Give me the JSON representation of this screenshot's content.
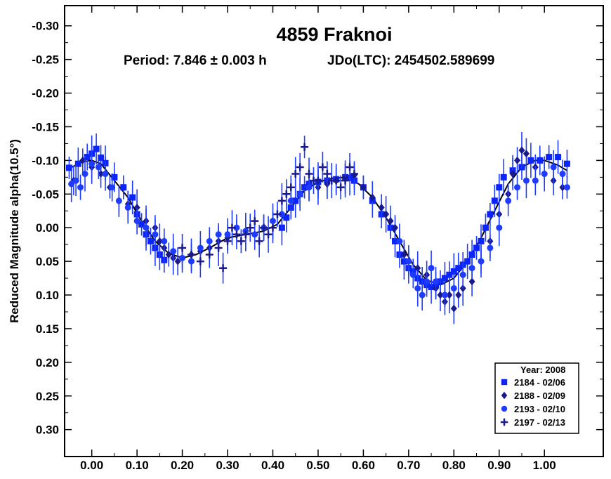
{
  "chart_data": {
    "type": "scatter",
    "title": "4859 Fraknoi",
    "subtitle_period": "Period: 7.846 ± 0.003 h",
    "subtitle_epoch": "JDo(LTC): 2454502.589699",
    "ylabel": "Reduced Magnitude alpha(10.5°)",
    "xlabel": "",
    "xlim": [
      -0.06,
      1.13
    ],
    "ylim": [
      -0.33,
      0.34
    ],
    "y_inverted": true,
    "grid": false,
    "legend_position": "bottom-right",
    "x_ticks": [
      "0.00",
      "0.10",
      "0.20",
      "0.30",
      "0.40",
      "0.50",
      "0.60",
      "0.70",
      "0.80",
      "0.90",
      "1.00"
    ],
    "y_ticks": [
      "-0.30",
      "-0.25",
      "-0.20",
      "-0.15",
      "-0.10",
      "-0.05",
      "0.00",
      "0.05",
      "0.10",
      "0.15",
      "0.20",
      "0.25",
      "0.30"
    ],
    "legend_title": "Year: 2008",
    "series": [
      {
        "name": "2184 - 02/06",
        "marker": "square",
        "color": "#0b24fb",
        "points": [
          [
            -0.05,
            -0.089
          ],
          [
            -0.03,
            -0.095
          ],
          [
            -0.01,
            -0.105
          ],
          [
            0.0,
            -0.11
          ],
          [
            0.01,
            -0.117
          ],
          [
            0.02,
            -0.104
          ],
          [
            0.03,
            -0.096
          ],
          [
            0.05,
            -0.075
          ],
          [
            0.07,
            -0.06
          ],
          [
            0.09,
            -0.045
          ],
          [
            0.1,
            -0.02
          ],
          [
            0.11,
            -0.005
          ],
          [
            0.12,
            0.01
          ],
          [
            0.13,
            0.02
          ],
          [
            0.14,
            0.03
          ],
          [
            0.15,
            0.04
          ],
          [
            0.16,
            0.048
          ],
          [
            0.42,
            0.0
          ],
          [
            0.43,
            -0.015
          ],
          [
            0.44,
            -0.03
          ],
          [
            0.45,
            -0.04
          ],
          [
            0.46,
            -0.05
          ],
          [
            0.47,
            -0.06
          ],
          [
            0.48,
            -0.065
          ],
          [
            0.5,
            -0.068
          ],
          [
            0.52,
            -0.07
          ],
          [
            0.54,
            -0.072
          ],
          [
            0.56,
            -0.075
          ],
          [
            0.57,
            -0.074
          ],
          [
            0.58,
            -0.07
          ],
          [
            0.6,
            -0.06
          ],
          [
            0.62,
            -0.04
          ],
          [
            0.64,
            -0.02
          ],
          [
            0.66,
            0.0
          ],
          [
            0.67,
            0.02
          ],
          [
            0.68,
            0.04
          ],
          [
            0.69,
            0.05
          ],
          [
            0.7,
            0.06
          ],
          [
            0.71,
            0.065
          ],
          [
            0.72,
            0.075
          ],
          [
            0.73,
            0.08
          ],
          [
            0.74,
            0.085
          ],
          [
            0.75,
            0.088
          ],
          [
            0.76,
            0.085
          ],
          [
            0.77,
            0.08
          ],
          [
            0.78,
            0.075
          ],
          [
            0.79,
            0.07
          ],
          [
            0.8,
            0.065
          ],
          [
            0.81,
            0.06
          ],
          [
            0.82,
            0.055
          ],
          [
            0.83,
            0.05
          ],
          [
            0.84,
            0.04
          ],
          [
            0.85,
            0.03
          ],
          [
            0.86,
            0.02
          ],
          [
            0.87,
            0.0
          ],
          [
            0.88,
            -0.02
          ],
          [
            0.89,
            -0.04
          ],
          [
            0.9,
            -0.06
          ],
          [
            0.91,
            -0.075
          ],
          [
            0.93,
            -0.085
          ],
          [
            0.95,
            -0.09
          ],
          [
            0.97,
            -0.1
          ],
          [
            0.99,
            -0.1
          ],
          [
            1.01,
            -0.105
          ],
          [
            1.03,
            -0.105
          ],
          [
            1.05,
            -0.095
          ]
        ]
      },
      {
        "name": "2188 - 02/09",
        "marker": "diamond",
        "color": "#1a1a8c",
        "points": [
          [
            -0.04,
            -0.07
          ],
          [
            -0.02,
            -0.1
          ],
          [
            0.0,
            -0.09
          ],
          [
            0.02,
            -0.08
          ],
          [
            0.04,
            -0.06
          ],
          [
            0.06,
            -0.04
          ],
          [
            0.08,
            -0.035
          ],
          [
            0.1,
            -0.03
          ],
          [
            0.12,
            -0.01
          ],
          [
            0.14,
            0.0
          ],
          [
            0.15,
            0.02
          ],
          [
            0.16,
            0.03
          ],
          [
            0.17,
            0.04
          ],
          [
            0.18,
            0.045
          ],
          [
            0.19,
            0.05
          ],
          [
            0.2,
            0.045
          ],
          [
            0.22,
            0.04
          ],
          [
            0.24,
            0.035
          ],
          [
            0.26,
            0.03
          ],
          [
            0.28,
            0.02
          ],
          [
            0.3,
            0.015
          ],
          [
            0.5,
            -0.06
          ],
          [
            0.52,
            -0.065
          ],
          [
            0.54,
            -0.07
          ],
          [
            0.56,
            -0.075
          ],
          [
            0.58,
            -0.078
          ],
          [
            0.6,
            -0.06
          ],
          [
            0.62,
            -0.045
          ],
          [
            0.64,
            -0.03
          ],
          [
            0.65,
            -0.02
          ],
          [
            0.66,
            -0.01
          ],
          [
            0.67,
            0.0
          ],
          [
            0.68,
            0.02
          ],
          [
            0.69,
            0.04
          ],
          [
            0.7,
            0.05
          ],
          [
            0.72,
            0.06
          ],
          [
            0.74,
            0.07
          ],
          [
            0.76,
            0.09
          ],
          [
            0.77,
            0.1
          ],
          [
            0.78,
            0.11
          ],
          [
            0.79,
            0.1
          ],
          [
            0.8,
            0.12
          ],
          [
            0.81,
            0.1
          ],
          [
            0.82,
            0.09
          ],
          [
            0.84,
            0.08
          ],
          [
            0.86,
            0.05
          ],
          [
            0.88,
            0.02
          ],
          [
            0.9,
            -0.02
          ],
          [
            0.92,
            -0.05
          ],
          [
            0.93,
            -0.08
          ],
          [
            0.94,
            -0.1
          ],
          [
            0.95,
            -0.115
          ],
          [
            0.96,
            -0.11
          ],
          [
            0.98,
            -0.09
          ],
          [
            1.0,
            -0.08
          ],
          [
            1.02,
            -0.07
          ],
          [
            1.04,
            -0.06
          ]
        ]
      },
      {
        "name": "2193 - 02/10",
        "marker": "circle",
        "color": "#1e3cff",
        "points": [
          [
            -0.045,
            -0.065
          ],
          [
            -0.035,
            -0.07
          ],
          [
            -0.025,
            -0.06
          ],
          [
            -0.015,
            -0.08
          ],
          [
            0.0,
            -0.095
          ],
          [
            0.015,
            -0.09
          ],
          [
            0.03,
            -0.08
          ],
          [
            0.045,
            -0.06
          ],
          [
            0.06,
            -0.04
          ],
          [
            0.08,
            -0.03
          ],
          [
            0.1,
            -0.01
          ],
          [
            0.12,
            0.0
          ],
          [
            0.14,
            0.01
          ],
          [
            0.16,
            0.02
          ],
          [
            0.18,
            0.035
          ],
          [
            0.2,
            0.045
          ],
          [
            0.22,
            0.05
          ],
          [
            0.24,
            0.03
          ],
          [
            0.26,
            0.02
          ],
          [
            0.28,
            0.01
          ],
          [
            0.3,
            0.01
          ],
          [
            0.32,
            0.0
          ],
          [
            0.34,
            0.005
          ],
          [
            0.36,
            0.01
          ],
          [
            0.38,
            0.0
          ],
          [
            0.4,
            -0.01
          ],
          [
            0.42,
            -0.02
          ],
          [
            0.44,
            -0.04
          ],
          [
            0.46,
            -0.05
          ],
          [
            0.48,
            -0.06
          ],
          [
            0.68,
            0.02
          ],
          [
            0.7,
            0.05
          ],
          [
            0.71,
            0.07
          ],
          [
            0.72,
            0.09
          ],
          [
            0.73,
            0.1
          ],
          [
            0.74,
            0.08
          ],
          [
            0.75,
            0.06
          ],
          [
            0.76,
            0.08
          ],
          [
            0.78,
            0.1
          ],
          [
            0.8,
            0.09
          ],
          [
            0.82,
            0.07
          ],
          [
            0.84,
            0.06
          ],
          [
            0.86,
            0.05
          ],
          [
            0.88,
            0.03
          ],
          [
            0.9,
            0.0
          ],
          [
            0.92,
            -0.04
          ],
          [
            0.94,
            -0.06
          ],
          [
            0.96,
            -0.07
          ],
          [
            0.98,
            -0.07
          ],
          [
            1.0,
            -0.08
          ],
          [
            1.02,
            -0.09
          ],
          [
            1.04,
            -0.08
          ],
          [
            1.05,
            -0.06
          ]
        ]
      },
      {
        "name": "2197 - 02/13",
        "marker": "plus",
        "color": "#1a1a8c",
        "points": [
          [
            0.2,
            0.03
          ],
          [
            0.22,
            0.04
          ],
          [
            0.24,
            0.05
          ],
          [
            0.26,
            0.04
          ],
          [
            0.28,
            0.03
          ],
          [
            0.29,
            0.06
          ],
          [
            0.3,
            0.02
          ],
          [
            0.31,
            0.0
          ],
          [
            0.32,
            0.01
          ],
          [
            0.33,
            0.02
          ],
          [
            0.34,
            0.01
          ],
          [
            0.35,
            0.0
          ],
          [
            0.36,
            -0.01
          ],
          [
            0.37,
            0.02
          ],
          [
            0.38,
            0.0
          ],
          [
            0.39,
            0.01
          ],
          [
            0.4,
            0.0
          ],
          [
            0.41,
            -0.02
          ],
          [
            0.42,
            -0.04
          ],
          [
            0.43,
            -0.05
          ],
          [
            0.44,
            -0.06
          ],
          [
            0.45,
            -0.08
          ],
          [
            0.46,
            -0.09
          ],
          [
            0.47,
            -0.12
          ],
          [
            0.48,
            -0.08
          ],
          [
            0.49,
            -0.07
          ],
          [
            0.5,
            -0.07
          ],
          [
            0.51,
            -0.09
          ],
          [
            0.52,
            -0.08
          ],
          [
            0.53,
            -0.07
          ],
          [
            0.54,
            -0.07
          ],
          [
            0.55,
            -0.06
          ],
          [
            0.56,
            -0.07
          ],
          [
            0.57,
            -0.09
          ],
          [
            0.58,
            -0.08
          ]
        ]
      }
    ],
    "fit_curve": [
      [
        -0.05,
        -0.088
      ],
      [
        -0.02,
        -0.098
      ],
      [
        0.0,
        -0.1
      ],
      [
        0.02,
        -0.095
      ],
      [
        0.05,
        -0.07
      ],
      [
        0.08,
        -0.045
      ],
      [
        0.11,
        -0.01
      ],
      [
        0.14,
        0.02
      ],
      [
        0.17,
        0.038
      ],
      [
        0.2,
        0.045
      ],
      [
        0.23,
        0.04
      ],
      [
        0.26,
        0.03
      ],
      [
        0.3,
        0.015
      ],
      [
        0.34,
        0.01
      ],
      [
        0.38,
        0.005
      ],
      [
        0.41,
        -0.005
      ],
      [
        0.44,
        -0.03
      ],
      [
        0.47,
        -0.055
      ],
      [
        0.5,
        -0.068
      ],
      [
        0.53,
        -0.073
      ],
      [
        0.56,
        -0.075
      ],
      [
        0.59,
        -0.065
      ],
      [
        0.62,
        -0.045
      ],
      [
        0.65,
        -0.015
      ],
      [
        0.68,
        0.02
      ],
      [
        0.71,
        0.055
      ],
      [
        0.74,
        0.078
      ],
      [
        0.77,
        0.085
      ],
      [
        0.8,
        0.075
      ],
      [
        0.83,
        0.05
      ],
      [
        0.86,
        0.015
      ],
      [
        0.89,
        -0.025
      ],
      [
        0.92,
        -0.065
      ],
      [
        0.95,
        -0.09
      ],
      [
        0.98,
        -0.1
      ],
      [
        1.0,
        -0.1
      ],
      [
        1.03,
        -0.093
      ],
      [
        1.05,
        -0.085
      ]
    ]
  }
}
